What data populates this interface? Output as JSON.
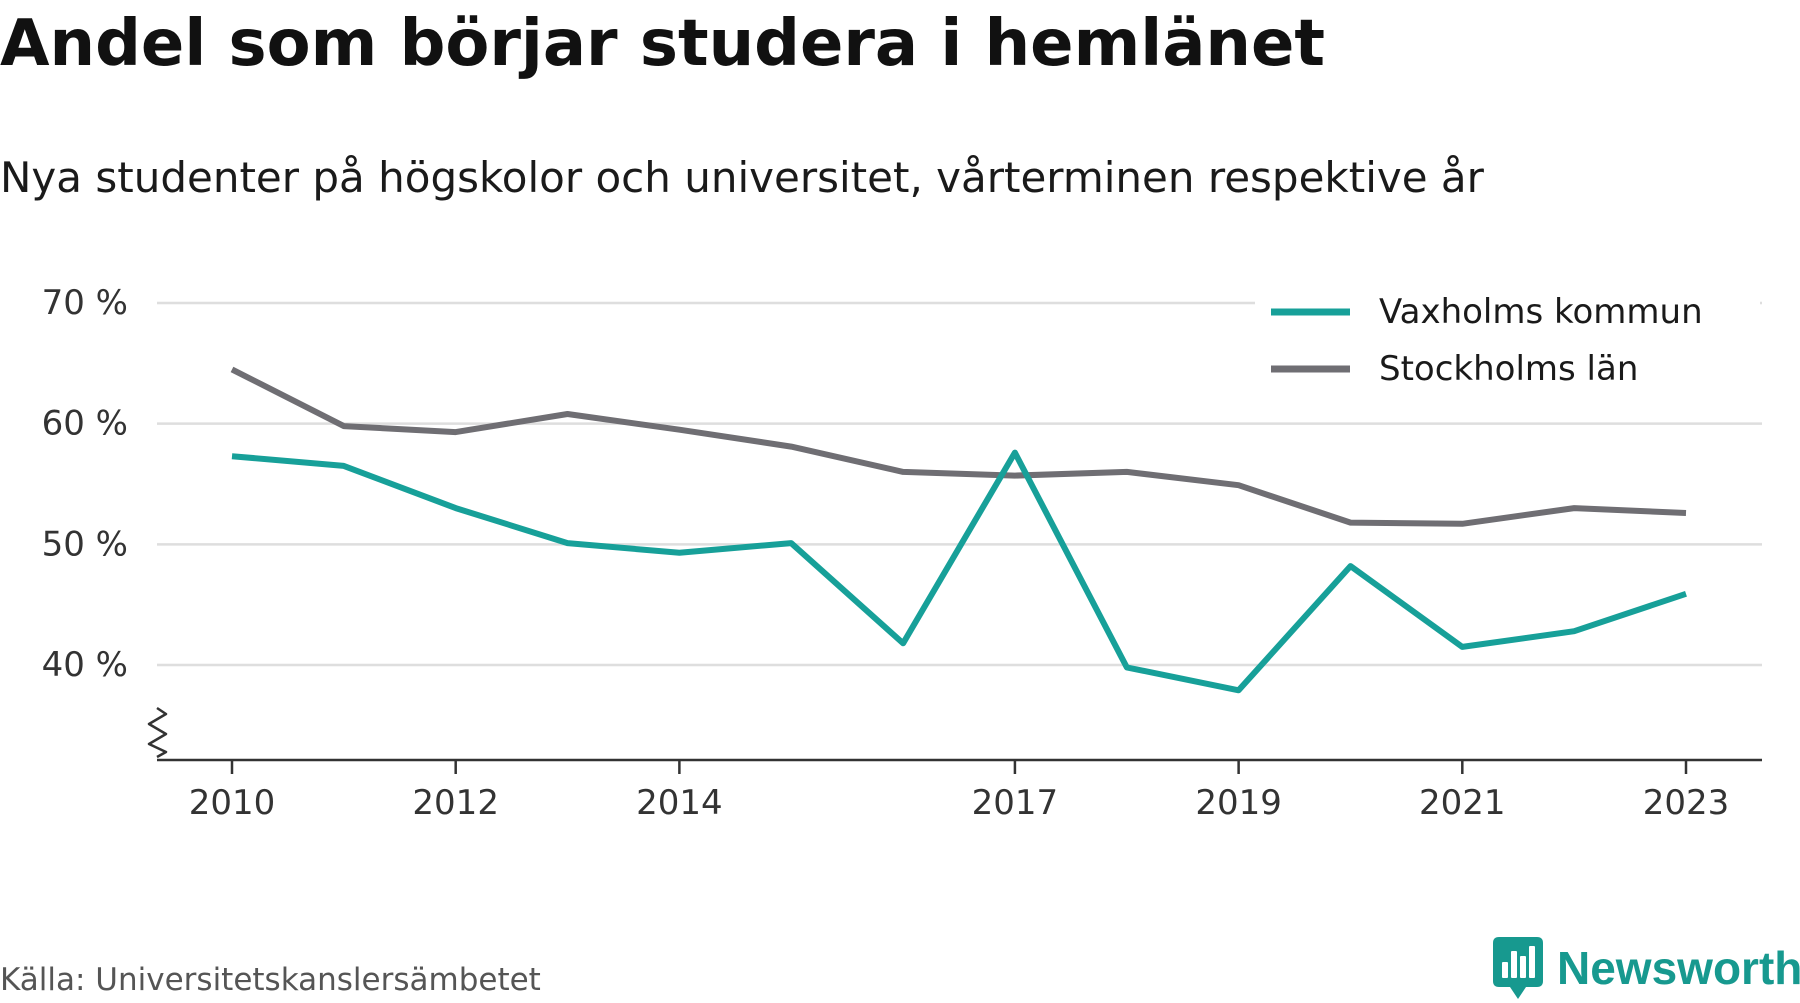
{
  "header": {
    "title": "Andel som börjar studera i hemlänet",
    "subtitle": "Nya studenter på högskolor och universitet, vårterminen respektive år"
  },
  "footer": {
    "source": "Källa: Universitetskanslersämbetet",
    "brand": "Newsworthy",
    "brand_icon": "bar-chart-pin-icon",
    "brand_color": "#17998f"
  },
  "chart_data": {
    "type": "line",
    "title": "Andel som börjar studera i hemlänet",
    "subtitle": "Nya studenter på högskolor och universitet, vårterminen respektive år",
    "x": [
      2010,
      2011,
      2012,
      2013,
      2014,
      2015,
      2016,
      2017,
      2018,
      2019,
      2020,
      2021,
      2022,
      2023
    ],
    "x_tick_labels": [
      "2010",
      "2012",
      "2014",
      "2017",
      "2019",
      "2021",
      "2023"
    ],
    "y_tick_labels": [
      "40 %",
      "50 %",
      "60 %",
      "70 %"
    ],
    "y_ticks": [
      40,
      50,
      60,
      70
    ],
    "ylim": [
      32,
      72
    ],
    "y_axis_break": true,
    "grid": "horizontal",
    "legend": "top-right",
    "series": [
      {
        "name": "Vaxholms kommun",
        "color": "#17a099",
        "values": [
          57.3,
          56.5,
          53.0,
          50.1,
          49.3,
          50.1,
          41.8,
          57.6,
          39.8,
          37.9,
          48.2,
          41.5,
          42.8,
          45.9
        ]
      },
      {
        "name": "Stockholms län",
        "color": "#6f6e73",
        "values": [
          64.5,
          59.8,
          59.3,
          60.8,
          59.5,
          58.1,
          56.0,
          55.7,
          56.0,
          54.9,
          51.8,
          51.7,
          53.0,
          52.6
        ]
      }
    ]
  }
}
